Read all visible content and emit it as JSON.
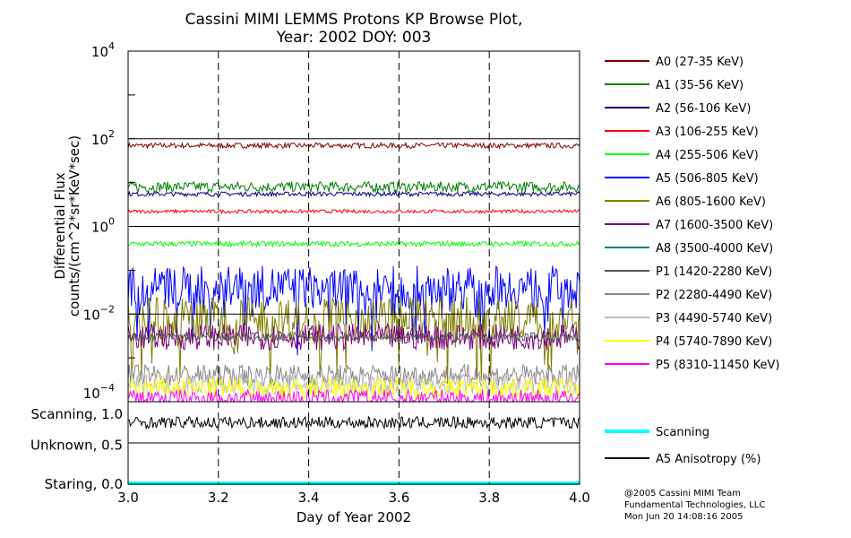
{
  "chart_data": {
    "type": "line",
    "title": "Cassini MIMI LEMMS Protons KP Browse Plot,",
    "subtitle": "Year: 2002 DOY: 003",
    "xlabel": "Day of Year 2002",
    "ylabel": [
      "Differential Flux",
      "counts/(cm^2*sr*KeV*sec)"
    ],
    "xlim": [
      3.0,
      4.0
    ],
    "ylim": [
      0.0001,
      10000
    ],
    "yscale": "log",
    "x_ticks": [
      "3.0",
      "3.2",
      "3.4",
      "3.6",
      "3.8",
      "4.0"
    ],
    "x_tick_values": [
      3.0,
      3.2,
      3.4,
      3.6,
      3.8,
      4.0
    ],
    "y_ticks": [
      {
        "base": "10",
        "exp": "4",
        "value": 10000
      },
      {
        "base": "10",
        "exp": "2",
        "value": 100
      },
      {
        "base": "10",
        "exp": "0",
        "value": 1
      },
      {
        "base": "10",
        "exp": "−2",
        "value": 0.01
      },
      {
        "base": "10",
        "exp": "−4",
        "value": 0.0001
      }
    ],
    "grid": "dashed vertical at x ticks",
    "legend_placement": "right",
    "series": [
      {
        "name": "A0 (27-35 KeV)",
        "color": "#7f0000",
        "level": 70,
        "spread": 0.06
      },
      {
        "name": "A1 (35-56 KeV)",
        "color": "#007f00",
        "level": 8,
        "spread": 0.12
      },
      {
        "name": "A2 (56-106 KeV)",
        "color": "#00007f",
        "level": 5.5,
        "spread": 0.05
      },
      {
        "name": "A3 (106-255 KeV)",
        "color": "#ff0000",
        "level": 2.2,
        "spread": 0.04
      },
      {
        "name": "A4 (255-506 KeV)",
        "color": "#00ff00",
        "level": 0.4,
        "spread": 0.06
      },
      {
        "name": "A5 (506-805 KeV)",
        "color": "#0000ff",
        "level": 0.04,
        "spread": 0.5
      },
      {
        "name": "A6 (805-1600 KeV)",
        "color": "#7f7f00",
        "level": 0.008,
        "spread": 0.5
      },
      {
        "name": "A7 (1600-3500 KeV)",
        "color": "#7f007f",
        "level": 0.003,
        "spread": 0.3
      },
      {
        "name": "A8 (3500-4000 KeV)",
        "color": "#007f7f",
        "level": null,
        "spread": 0
      },
      {
        "name": "P1 (1420-2280 KeV)",
        "color": "#555555",
        "level": 0.003,
        "spread": 0.1
      },
      {
        "name": "P2 (2280-4490 KeV)",
        "color": "#888888",
        "level": 0.0004,
        "spread": 0.25
      },
      {
        "name": "P3 (4490-5740 KeV)",
        "color": "#bbbbbb",
        "level": 0.00025,
        "spread": 0.25
      },
      {
        "name": "P4 (5740-7890 KeV)",
        "color": "#ffff00",
        "level": 0.0002,
        "spread": 0.25
      },
      {
        "name": "P5 (8310-11450 KeV)",
        "color": "#ff00ff",
        "level": 0.00012,
        "spread": 0.2
      }
    ],
    "lower_panel": {
      "y_labels": [
        {
          "label": "Scanning, 1.0",
          "value": 1.0
        },
        {
          "label": "Unknown, 0.5",
          "value": 0.5
        },
        {
          "label": "Staring, 0.0",
          "value": 0.0
        }
      ],
      "series": [
        {
          "name": "Scanning",
          "color": "#00ffff",
          "level": 0.0,
          "spread": 0
        },
        {
          "name": "A5 Anisotropy (%)",
          "color": "#000000",
          "level": 0.8,
          "spread": 0.08
        }
      ]
    }
  },
  "footer": [
    "@2005 Cassini MIMI Team",
    "Fundamental Technologies, LLC",
    "Mon Jun 20 14:08:16 2005"
  ]
}
